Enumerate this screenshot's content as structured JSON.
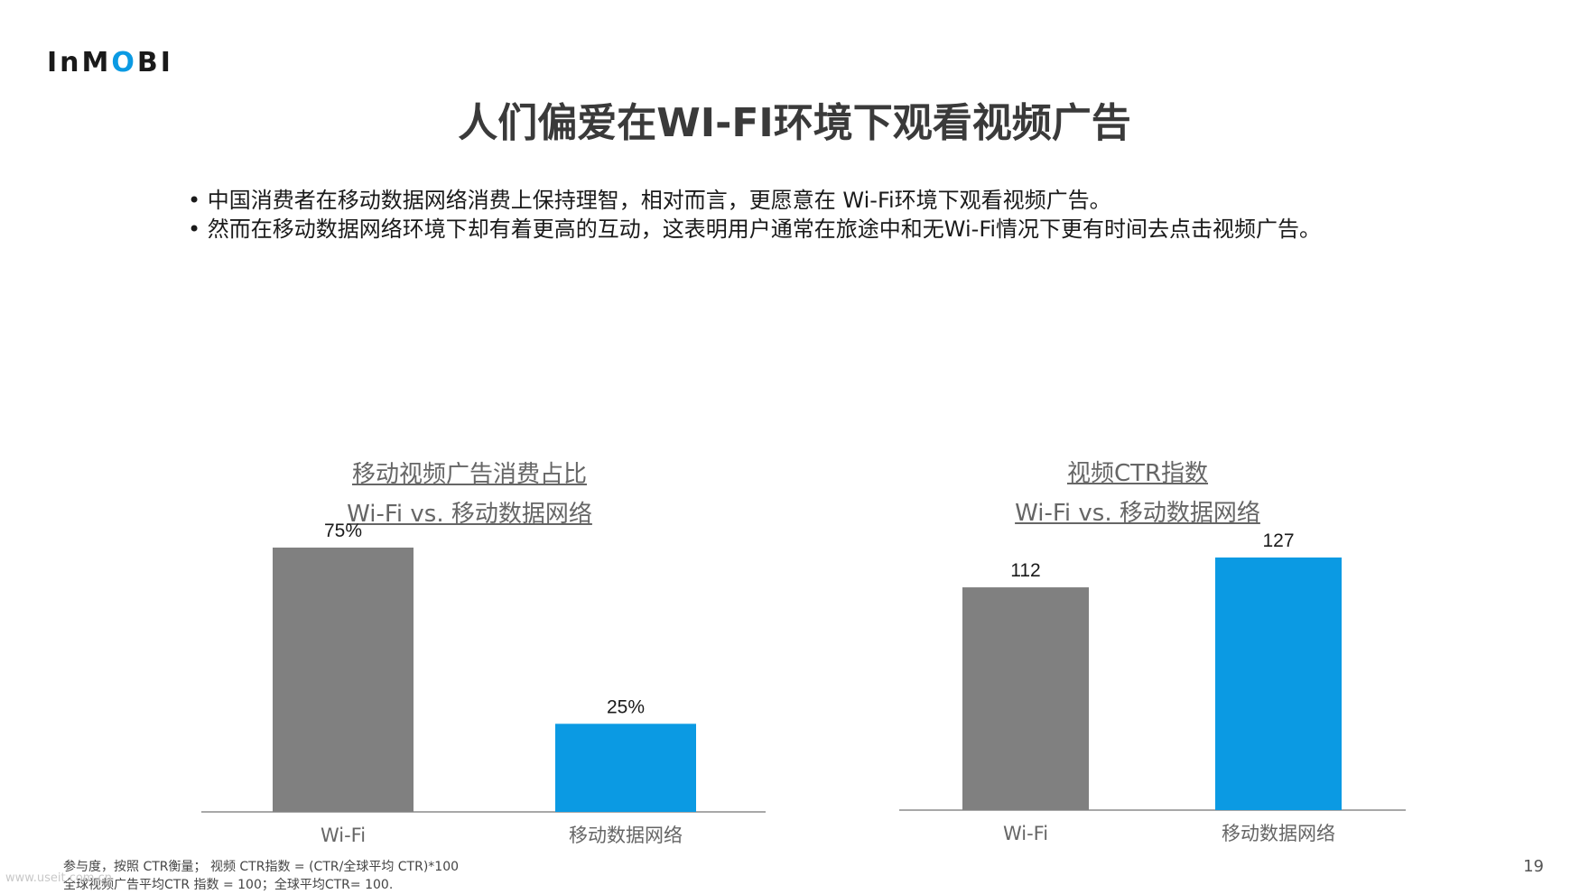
{
  "logo": {
    "pre": "InM",
    "o": "O",
    "post": "BI"
  },
  "title": "人们偏爱在WI-FI环境下观看视频广告",
  "bullets": [
    "中国消费者在移动数据网络消费上保持理智，相对而言，更愿意在 Wi-Fi环境下观看视频广告。",
    "然而在移动数据网络环境下却有着更高的互动，这表明用户通常在旅途中和无Wi-Fi情况下更有时间去点击视频广告。"
  ],
  "chart_data": [
    {
      "type": "bar",
      "title_line1": "移动视频广告消费占比",
      "title_line2": "Wi-Fi vs. 移动数据网络",
      "categories": [
        "Wi-Fi",
        "移动数据网络"
      ],
      "values": [
        75,
        25
      ],
      "value_labels": [
        "75%",
        "25%"
      ],
      "colors": [
        "#808080",
        "#0b9ae3"
      ],
      "ylim": [
        0,
        75
      ]
    },
    {
      "type": "bar",
      "title_line1": "视频CTR指数",
      "title_line2": "Wi-Fi vs. 移动数据网络",
      "categories": [
        "Wi-Fi",
        "移动数据网络"
      ],
      "values": [
        112,
        127
      ],
      "value_labels": [
        "112",
        "127"
      ],
      "colors": [
        "#808080",
        "#0b9ae3"
      ],
      "ylim": [
        0,
        127
      ]
    }
  ],
  "footnote": {
    "line1": "参与度，按照 CTR衡量； 视频 CTR指数 = (CTR/全球平均 CTR)*100",
    "line2": "全球视频广告平均CTR 指数 = 100；全球平均CTR= 100."
  },
  "page_number": "19",
  "watermark": "www.useit.com.cn"
}
